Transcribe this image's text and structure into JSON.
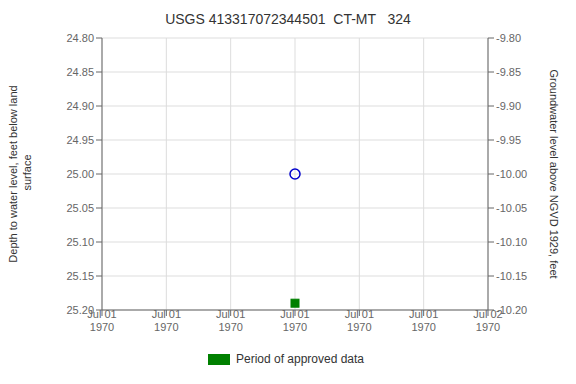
{
  "chart_data": {
    "type": "scatter",
    "title": "USGS 413317072344501  CT-MT   324",
    "y_label": "Depth to water level, feet below land\n surface",
    "y2_label": "Groundwater level above NGVD 1929, feet",
    "categories": [
      "Jul 01\n1970",
      "Jul 01\n1970",
      "Jul 01\n1970",
      "Jul 01\n1970",
      "Jul 01\n1970",
      "Jul 01\n1970",
      "Jul 02\n1970"
    ],
    "series": [
      {
        "values": [
          null,
          null,
          null,
          25.0,
          null,
          null,
          null
        ],
        "color": "#0000cc",
        "marker": "open circle"
      },
      {
        "name": "Period of approved data",
        "values": [
          null,
          null,
          null,
          25.19,
          null,
          null,
          null
        ],
        "color": "#008000",
        "marker": "square"
      }
    ],
    "ylim": [
      25.2,
      24.8
    ],
    "yticks": [
      {
        "value": 24.8,
        "label": "24.80"
      },
      24.85,
      {
        "value": 24.9,
        "label": "24.90"
      },
      24.95,
      {
        "value": 25.0,
        "label": "25.00"
      },
      25.05,
      {
        "value": 25.1,
        "label": "25.10"
      },
      25.15,
      {
        "value": 25.2,
        "label": "25.20"
      }
    ],
    "y2lim": [
      -10.2,
      -9.8
    ],
    "y2ticks": [
      {
        "value": -9.8,
        "label": "-9.80"
      },
      -9.85,
      {
        "value": -9.9,
        "label": "-9.90"
      },
      -9.95,
      {
        "value": -10.0,
        "label": "-10.00"
      },
      -10.05,
      {
        "value": -10.1,
        "label": "-10.10"
      },
      -10.15,
      {
        "value": -10.2,
        "label": "-10.20"
      }
    ],
    "grid": true,
    "legend": "bottom"
  }
}
